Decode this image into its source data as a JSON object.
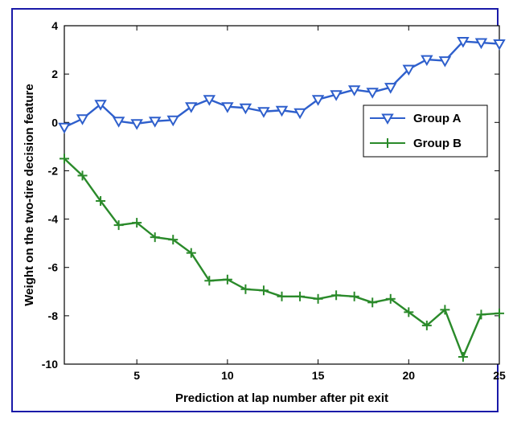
{
  "chart_data": {
    "type": "line",
    "title": "",
    "xlabel": "Prediction at lap number after pit exit",
    "ylabel": "Weight on the two-tire decision feature",
    "xlim": [
      1,
      25
    ],
    "ylim": [
      -10,
      4
    ],
    "xticks": [
      5,
      10,
      15,
      20,
      25
    ],
    "yticks": [
      -10,
      -8,
      -6,
      -4,
      -2,
      0,
      2,
      4
    ],
    "grid": false,
    "legend_position": "right",
    "x": [
      1,
      2,
      3,
      4,
      5,
      6,
      7,
      8,
      9,
      10,
      11,
      12,
      13,
      14,
      15,
      16,
      17,
      18,
      19,
      20,
      21,
      22,
      23,
      24,
      25
    ],
    "series": [
      {
        "name": "Group A",
        "color": "#2e5fcc",
        "marker": "triangle-down",
        "values": [
          -0.2,
          0.15,
          0.75,
          0.05,
          -0.05,
          0.05,
          0.1,
          0.65,
          0.95,
          0.65,
          0.6,
          0.45,
          0.5,
          0.4,
          0.95,
          1.15,
          1.35,
          1.25,
          1.45,
          2.2,
          2.6,
          2.55,
          3.35,
          3.3,
          3.25
        ]
      },
      {
        "name": "Group B",
        "color": "#2a8a2a",
        "marker": "plus",
        "values": [
          -1.5,
          -2.2,
          -3.25,
          -4.25,
          -4.15,
          -4.75,
          -4.85,
          -5.4,
          -6.55,
          -6.5,
          -6.9,
          -6.95,
          -7.2,
          -7.2,
          -7.3,
          -7.15,
          -7.2,
          -7.45,
          -7.3,
          -7.85,
          -8.4,
          -7.75,
          -9.7,
          -7.95,
          -7.9
        ]
      }
    ]
  }
}
